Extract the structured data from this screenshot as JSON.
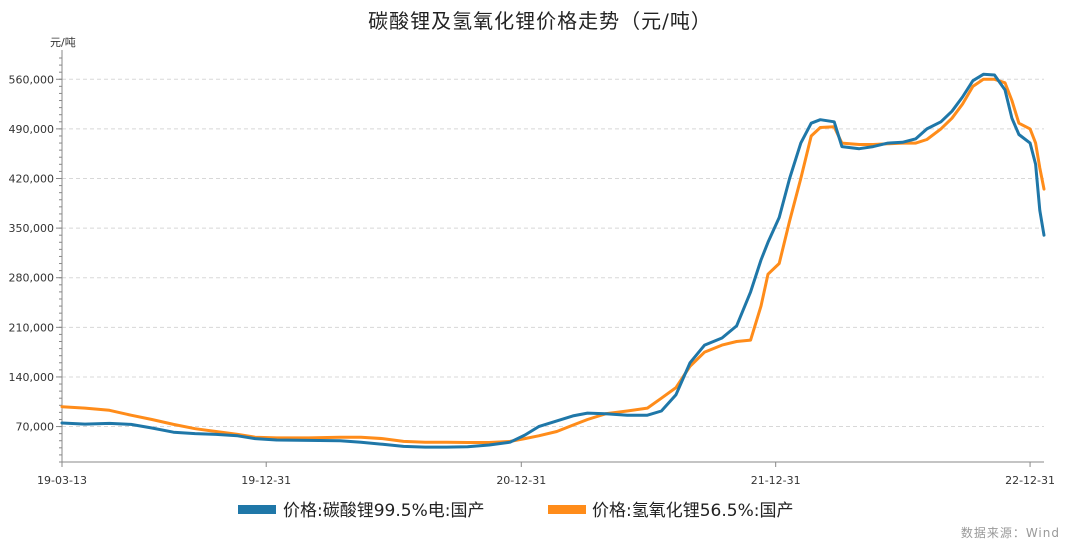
{
  "chart_data": {
    "type": "line",
    "title": "碳酸锂及氢氧化锂价格走势（元/吨）",
    "y_unit": "元/吨",
    "source": "数据来源：Wind",
    "ylim": [
      20000,
      590000
    ],
    "y_ticks": [
      70000,
      140000,
      210000,
      280000,
      350000,
      420000,
      490000,
      560000
    ],
    "y_tick_labels": [
      "70,000",
      "140,000",
      "210,000",
      "280,000",
      "350,000",
      "420,000",
      "490,000",
      "560,000"
    ],
    "x_range": [
      "2019-03-13",
      "2023-01-20"
    ],
    "x_ticks": [
      "2019-03-13",
      "2019-12-31",
      "2020-12-31",
      "2021-12-31",
      "2022-12-31"
    ],
    "x_tick_labels": [
      "19-03-13",
      "19-12-31",
      "20-12-31",
      "21-12-31",
      "22-12-31"
    ],
    "grid": {
      "horizontal": true,
      "style": "dashed"
    },
    "legend_position": "bottom-center",
    "series": [
      {
        "name": "价格:碳酸锂99.5%电:国产",
        "color": "#1f77a8",
        "points": [
          [
            "2019-03-13",
            75000
          ],
          [
            "2019-04-15",
            73500
          ],
          [
            "2019-05-20",
            74500
          ],
          [
            "2019-06-20",
            73000
          ],
          [
            "2019-07-20",
            68000
          ],
          [
            "2019-08-20",
            62000
          ],
          [
            "2019-09-20",
            60000
          ],
          [
            "2019-10-20",
            59000
          ],
          [
            "2019-11-20",
            57000
          ],
          [
            "2019-12-15",
            53000
          ],
          [
            "2020-01-15",
            51000
          ],
          [
            "2020-03-01",
            50500
          ],
          [
            "2020-04-15",
            50000
          ],
          [
            "2020-05-15",
            48000
          ],
          [
            "2020-06-15",
            45000
          ],
          [
            "2020-07-15",
            42000
          ],
          [
            "2020-08-15",
            41000
          ],
          [
            "2020-09-15",
            41000
          ],
          [
            "2020-10-15",
            41500
          ],
          [
            "2020-11-15",
            44000
          ],
          [
            "2020-12-15",
            48000
          ],
          [
            "2021-01-05",
            58000
          ],
          [
            "2021-01-25",
            70000
          ],
          [
            "2021-02-20",
            78000
          ],
          [
            "2021-03-15",
            85000
          ],
          [
            "2021-04-05",
            89000
          ],
          [
            "2021-05-01",
            88000
          ],
          [
            "2021-06-01",
            86000
          ],
          [
            "2021-06-30",
            86000
          ],
          [
            "2021-07-20",
            92000
          ],
          [
            "2021-08-10",
            115000
          ],
          [
            "2021-08-30",
            160000
          ],
          [
            "2021-09-20",
            185000
          ],
          [
            "2021-10-15",
            195000
          ],
          [
            "2021-11-05",
            212000
          ],
          [
            "2021-11-25",
            260000
          ],
          [
            "2021-12-10",
            305000
          ],
          [
            "2021-12-20",
            330000
          ],
          [
            "2022-01-05",
            365000
          ],
          [
            "2022-01-20",
            420000
          ],
          [
            "2022-02-05",
            470000
          ],
          [
            "2022-02-20",
            498000
          ],
          [
            "2022-03-05",
            503000
          ],
          [
            "2022-03-25",
            500000
          ],
          [
            "2022-04-05",
            465000
          ],
          [
            "2022-04-30",
            462000
          ],
          [
            "2022-05-20",
            465000
          ],
          [
            "2022-06-10",
            470000
          ],
          [
            "2022-07-01",
            471000
          ],
          [
            "2022-07-20",
            476000
          ],
          [
            "2022-08-05",
            490000
          ],
          [
            "2022-08-25",
            500000
          ],
          [
            "2022-09-10",
            515000
          ],
          [
            "2022-09-25",
            535000
          ],
          [
            "2022-10-10",
            558000
          ],
          [
            "2022-10-25",
            567000
          ],
          [
            "2022-11-10",
            566000
          ],
          [
            "2022-11-25",
            545000
          ],
          [
            "2022-12-05",
            505000
          ],
          [
            "2022-12-15",
            482000
          ],
          [
            "2022-12-31",
            470000
          ],
          [
            "2023-01-08",
            440000
          ],
          [
            "2023-01-14",
            375000
          ],
          [
            "2023-01-20",
            340000
          ]
        ]
      },
      {
        "name": "价格:氢氧化锂56.5%:国产",
        "color": "#ff8c1a",
        "points": [
          [
            "2019-03-13",
            98000
          ],
          [
            "2019-04-15",
            96000
          ],
          [
            "2019-05-20",
            93000
          ],
          [
            "2019-06-20",
            86000
          ],
          [
            "2019-07-20",
            80000
          ],
          [
            "2019-08-20",
            73000
          ],
          [
            "2019-09-20",
            67000
          ],
          [
            "2019-10-20",
            63000
          ],
          [
            "2019-11-20",
            59000
          ],
          [
            "2019-12-15",
            55000
          ],
          [
            "2020-01-15",
            54000
          ],
          [
            "2020-03-01",
            54000
          ],
          [
            "2020-04-15",
            55000
          ],
          [
            "2020-05-15",
            55000
          ],
          [
            "2020-06-15",
            53000
          ],
          [
            "2020-07-15",
            49000
          ],
          [
            "2020-08-15",
            48000
          ],
          [
            "2020-09-15",
            48000
          ],
          [
            "2020-10-15",
            47500
          ],
          [
            "2020-11-15",
            47500
          ],
          [
            "2020-12-15",
            49000
          ],
          [
            "2021-01-05",
            53000
          ],
          [
            "2021-01-25",
            57000
          ],
          [
            "2021-02-20",
            63000
          ],
          [
            "2021-03-15",
            72000
          ],
          [
            "2021-04-05",
            80000
          ],
          [
            "2021-05-01",
            88000
          ],
          [
            "2021-06-01",
            92000
          ],
          [
            "2021-06-30",
            96000
          ],
          [
            "2021-07-20",
            110000
          ],
          [
            "2021-08-10",
            125000
          ],
          [
            "2021-08-30",
            155000
          ],
          [
            "2021-09-20",
            175000
          ],
          [
            "2021-10-15",
            185000
          ],
          [
            "2021-11-05",
            190000
          ],
          [
            "2021-11-25",
            192000
          ],
          [
            "2021-12-10",
            240000
          ],
          [
            "2021-12-20",
            285000
          ],
          [
            "2022-01-05",
            300000
          ],
          [
            "2022-01-20",
            360000
          ],
          [
            "2022-02-05",
            420000
          ],
          [
            "2022-02-20",
            480000
          ],
          [
            "2022-03-05",
            492000
          ],
          [
            "2022-03-25",
            493000
          ],
          [
            "2022-04-05",
            470000
          ],
          [
            "2022-04-30",
            468000
          ],
          [
            "2022-05-20",
            468000
          ],
          [
            "2022-06-10",
            469000
          ],
          [
            "2022-07-01",
            470000
          ],
          [
            "2022-07-20",
            470000
          ],
          [
            "2022-08-05",
            475000
          ],
          [
            "2022-08-25",
            490000
          ],
          [
            "2022-09-10",
            505000
          ],
          [
            "2022-09-25",
            525000
          ],
          [
            "2022-10-10",
            550000
          ],
          [
            "2022-10-25",
            560000
          ],
          [
            "2022-11-10",
            560000
          ],
          [
            "2022-11-25",
            555000
          ],
          [
            "2022-12-05",
            530000
          ],
          [
            "2022-12-15",
            498000
          ],
          [
            "2022-12-31",
            490000
          ],
          [
            "2023-01-08",
            470000
          ],
          [
            "2023-01-14",
            435000
          ],
          [
            "2023-01-20",
            405000
          ]
        ]
      }
    ]
  }
}
